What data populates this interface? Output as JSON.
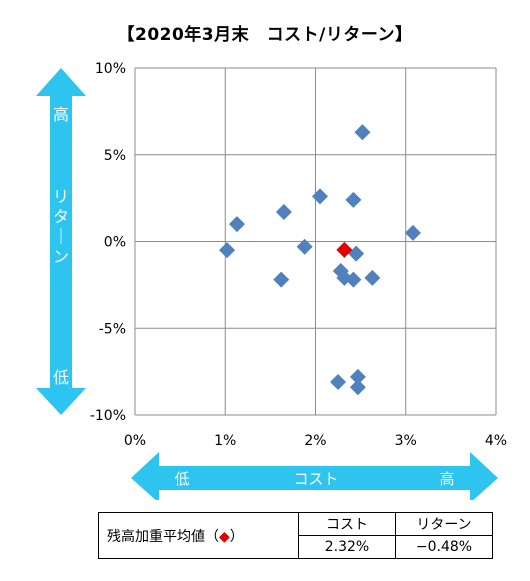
{
  "title": "【2020年3月末　コスト/リターン】",
  "chart_data": {
    "type": "scatter",
    "xlabel": "コスト",
    "ylabel": "リターン",
    "x_low_label": "低",
    "x_high_label": "高",
    "y_low_label": "低",
    "y_high_label": "高",
    "xlim": [
      0,
      4
    ],
    "ylim": [
      -10,
      10
    ],
    "x_ticks": [
      "0%",
      "1%",
      "2%",
      "3%",
      "4%"
    ],
    "y_ticks": [
      "10%",
      "5%",
      "0%",
      "-5%",
      "-10%"
    ],
    "grid": true,
    "series": [
      {
        "color": "#4f81bd",
        "marker": "diamond",
        "points": [
          {
            "x": 2.52,
            "y": 6.3
          },
          {
            "x": 2.05,
            "y": 2.6
          },
          {
            "x": 2.42,
            "y": 2.4
          },
          {
            "x": 1.65,
            "y": 1.7
          },
          {
            "x": 1.13,
            "y": 1.0
          },
          {
            "x": 3.08,
            "y": 0.5
          },
          {
            "x": 1.02,
            "y": -0.5
          },
          {
            "x": 1.88,
            "y": -0.3
          },
          {
            "x": 2.45,
            "y": -0.7
          },
          {
            "x": 2.28,
            "y": -1.7
          },
          {
            "x": 2.32,
            "y": -2.1
          },
          {
            "x": 2.42,
            "y": -2.2
          },
          {
            "x": 2.63,
            "y": -2.1
          },
          {
            "x": 1.62,
            "y": -2.2
          },
          {
            "x": 2.25,
            "y": -8.1
          },
          {
            "x": 2.47,
            "y": -7.8
          },
          {
            "x": 2.47,
            "y": -8.4
          }
        ]
      },
      {
        "color": "#e00000",
        "marker": "diamond",
        "points": [
          {
            "x": 2.32,
            "y": -0.48
          }
        ]
      }
    ]
  },
  "table": {
    "row_label": "残高加重平均値（",
    "row_label_marker": "◆",
    "row_label_end": "）",
    "headers": [
      "コスト",
      "リターン"
    ],
    "values": [
      "2.32%",
      "−0.48%"
    ]
  },
  "colors": {
    "arrow": "#2ec4f0",
    "series": "#4f81bd",
    "highlight": "#e00000",
    "grid": "#8c8c8c"
  }
}
